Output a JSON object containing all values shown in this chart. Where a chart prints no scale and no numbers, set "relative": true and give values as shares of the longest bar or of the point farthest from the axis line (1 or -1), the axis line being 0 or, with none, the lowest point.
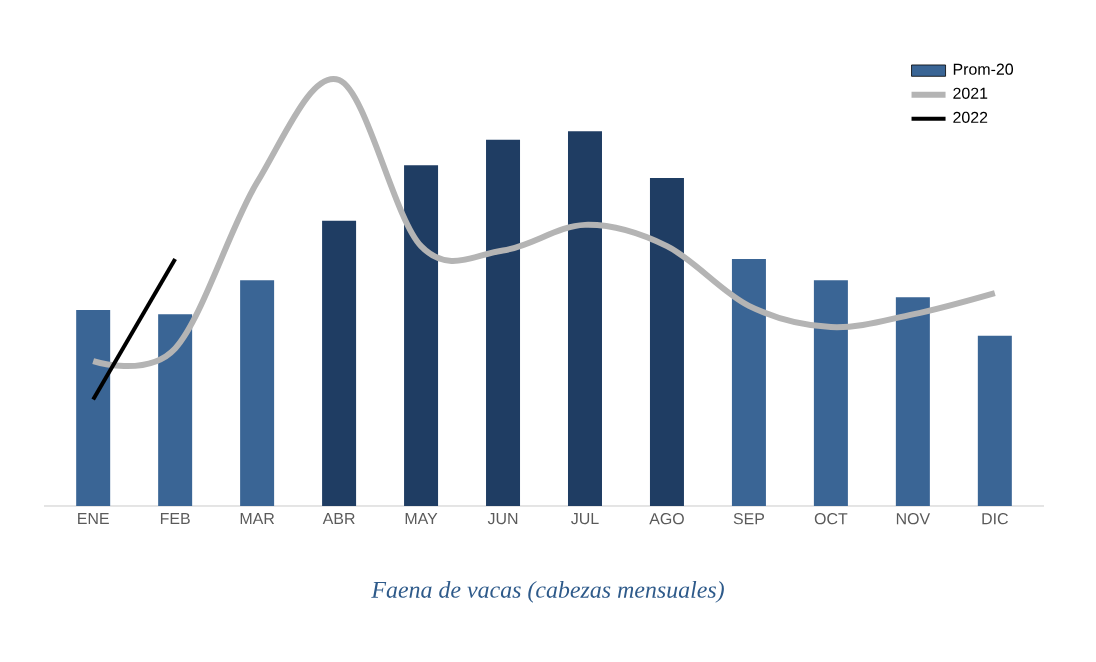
{
  "chart_data": {
    "type": "bar",
    "title": "Faena de vacas (cabezas mensuales)",
    "relative": true,
    "legend": "top right",
    "categories": [
      "ENE",
      "FEB",
      "MAR",
      "ABR",
      "MAY",
      "JUN",
      "JUL",
      "AGO",
      "SEP",
      "OCT",
      "NOV",
      "DIC"
    ],
    "series": [
      {
        "name": "Prom-20",
        "color": "#3a6595",
        "colors": [
          "#3a6595",
          "#3a6595",
          "#3a6595",
          "#1f3d63",
          "#1f3d63",
          "#1f3d63",
          "#1f3d63",
          "#1f3d63",
          "#3a6595",
          "#3a6595",
          "#3a6595",
          "#3a6595"
        ],
        "values": [
          0.46,
          0.45,
          0.53,
          0.67,
          0.8,
          0.86,
          0.88,
          0.77,
          0.58,
          0.53,
          0.49,
          0.4
        ]
      },
      {
        "name": "2021",
        "type": "line",
        "color": "#b4b4b4",
        "values": [
          0.34,
          0.37,
          0.76,
          1.0,
          0.61,
          0.6,
          0.66,
          0.61,
          0.47,
          0.42,
          0.45,
          0.5
        ]
      },
      {
        "name": "2022",
        "type": "line",
        "color": "#000000",
        "values": [
          0.25,
          0.58,
          null,
          null,
          null,
          null,
          null,
          null,
          null,
          null,
          null,
          null
        ]
      }
    ]
  }
}
